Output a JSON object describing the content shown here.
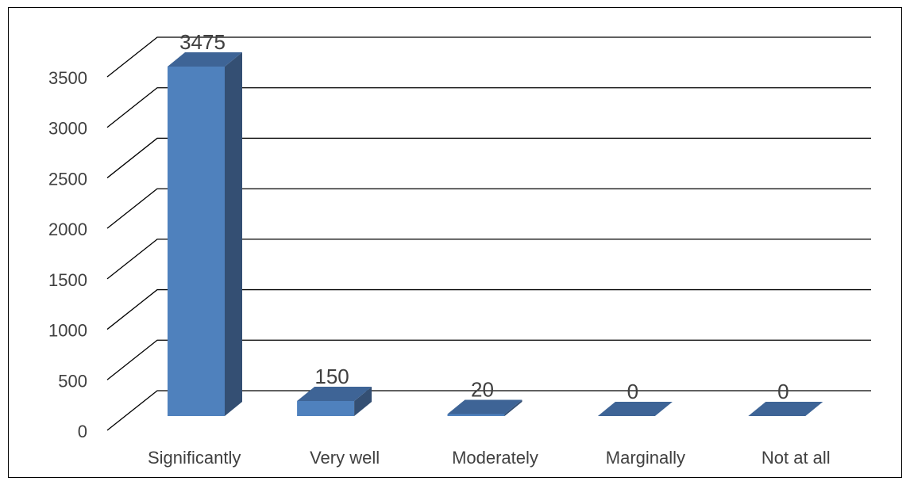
{
  "chart_data": {
    "type": "bar",
    "style": "3d-column",
    "categories": [
      "Significantly",
      "Very well",
      "Moderately",
      "Marginally",
      "Not at all"
    ],
    "values": [
      3475,
      150,
      20,
      0,
      0
    ],
    "data_labels": [
      "3475",
      "150",
      "20",
      "0",
      "0"
    ],
    "y_ticks": [
      "0",
      "500",
      "1000",
      "1500",
      "2000",
      "2500",
      "3000",
      "3500"
    ],
    "ylim": [
      0,
      3500
    ],
    "grid": true,
    "legend": false
  },
  "colors": {
    "bar_front": "#4f81bd",
    "bar_side": "#344f73",
    "bar_top": "#3e6496",
    "grid": "#000000",
    "text": "#404040"
  }
}
